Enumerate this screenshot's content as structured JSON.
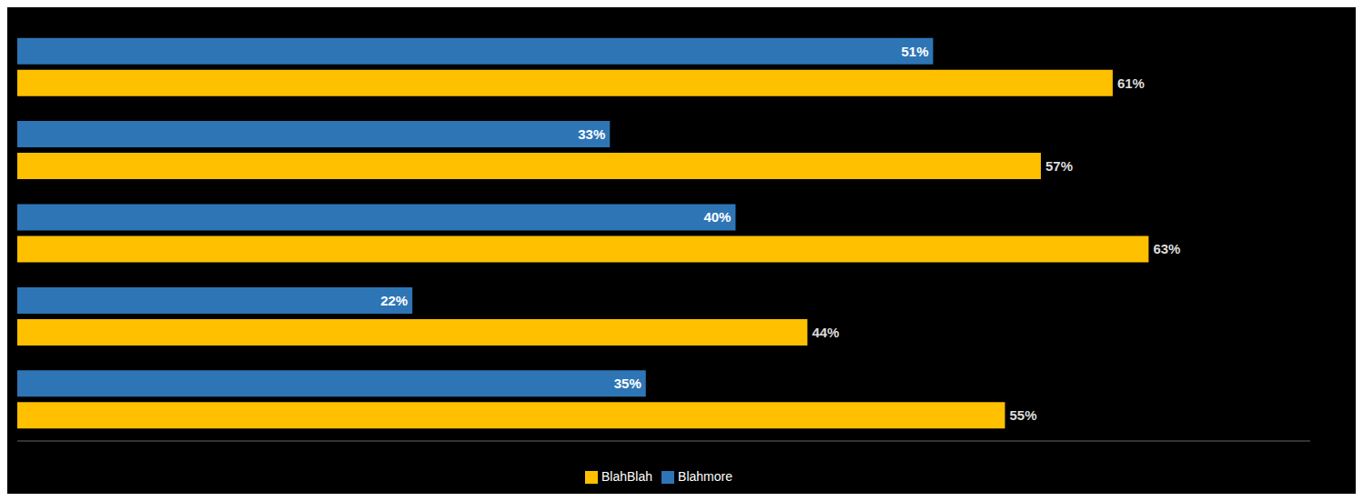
{
  "chart_data": {
    "type": "bar",
    "orientation": "horizontal",
    "categories": [
      null,
      null,
      null,
      null,
      null
    ],
    "series": [
      {
        "name": "Blahmore",
        "color": "#2E75B6",
        "values": [
          51,
          33,
          40,
          22,
          35
        ],
        "value_labels": [
          "51%",
          "33%",
          "40%",
          "22%",
          "35%"
        ]
      },
      {
        "name": "BlahBlah",
        "color": "#FFC000",
        "values": [
          61,
          57,
          63,
          44,
          55
        ],
        "value_labels": [
          "61%",
          "57%",
          "63%",
          "44%",
          "55%"
        ]
      }
    ],
    "xlim": [
      0,
      72
    ],
    "data_labels": true,
    "tick_labels": false,
    "grid": false,
    "legend": "bottom"
  }
}
